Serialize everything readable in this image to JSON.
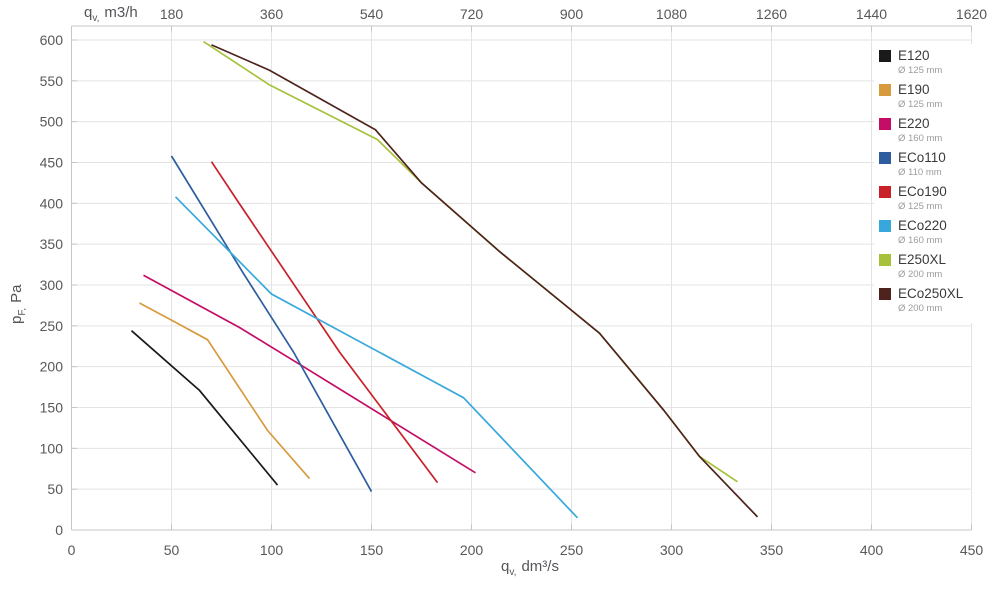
{
  "colors": {
    "background": "#ffffff",
    "grid": "#e3e3e3",
    "axis": "#c6c6c6",
    "tick_label": "#58585a",
    "axis_title": "#55555a",
    "legend_name": "#3a3a3a",
    "legend_diameter": "#9c9c9c"
  },
  "chart_data": {
    "type": "line",
    "title": "",
    "grid": true,
    "legend_position": "top-right",
    "axes": {
      "bottom": {
        "label_base": "q",
        "label_sub": "v,",
        "label_unit": "dm³/s",
        "ticks": [
          0,
          50,
          100,
          150,
          200,
          250,
          300,
          350,
          400,
          450
        ],
        "range": [
          0,
          450
        ]
      },
      "top": {
        "label_base": "q",
        "label_sub": "v,",
        "label_unit": "m3/h",
        "ticks": [
          180,
          360,
          540,
          720,
          900,
          1080,
          1260,
          1440,
          1620
        ],
        "unit_conversion_to_bottom": 3.6
      },
      "left": {
        "label_base": "p",
        "label_sub": "F,",
        "label_unit": "Pa",
        "ticks": [
          0,
          50,
          100,
          150,
          200,
          250,
          300,
          350,
          400,
          450,
          500,
          550,
          600
        ],
        "range": [
          0,
          600
        ]
      }
    },
    "series": [
      {
        "name": "E120",
        "diameter": "Ø 125 mm",
        "color": "#1a1a1a",
        "points": [
          [
            30,
            244
          ],
          [
            64,
            171
          ],
          [
            103,
            55
          ]
        ]
      },
      {
        "name": "E190",
        "diameter": "Ø 125 mm",
        "color": "#d89a3e",
        "points": [
          [
            34,
            278
          ],
          [
            53,
            253
          ],
          [
            68,
            233
          ],
          [
            98,
            122
          ],
          [
            119,
            63
          ]
        ]
      },
      {
        "name": "E220",
        "diameter": "Ø 160 mm",
        "color": "#c40d66",
        "points": [
          [
            36,
            312
          ],
          [
            84,
            248
          ],
          [
            116,
            200
          ],
          [
            202,
            70
          ]
        ]
      },
      {
        "name": "ECo110",
        "diameter": "Ø 110 mm",
        "color": "#2e5d9f",
        "points": [
          [
            50,
            458
          ],
          [
            86,
            314
          ],
          [
            111,
            218
          ],
          [
            150,
            47
          ]
        ]
      },
      {
        "name": "ECo190",
        "diameter": "Ø 125 mm",
        "color": "#c82127",
        "points": [
          [
            70,
            451
          ],
          [
            83,
            403
          ],
          [
            134,
            218
          ],
          [
            183,
            58
          ]
        ]
      },
      {
        "name": "ECo220",
        "diameter": "Ø 160 mm",
        "color": "#38a8dc",
        "points": [
          [
            52,
            408
          ],
          [
            100,
            289
          ],
          [
            196,
            162
          ],
          [
            253,
            15
          ]
        ]
      },
      {
        "name": "E250XL",
        "diameter": "Ø 200 mm",
        "color": "#a6c23c",
        "points": [
          [
            66,
            598
          ],
          [
            99,
            545
          ],
          [
            153,
            478
          ],
          [
            175,
            425
          ],
          [
            214,
            341
          ],
          [
            247,
            275
          ],
          [
            264,
            241
          ],
          [
            296,
            147
          ],
          [
            314,
            90
          ],
          [
            333,
            59
          ]
        ]
      },
      {
        "name": "ECo250XL",
        "diameter": "Ø 200 mm",
        "color": "#4e231d",
        "points": [
          [
            70,
            594
          ],
          [
            99,
            563
          ],
          [
            152,
            490
          ],
          [
            175,
            425
          ],
          [
            214,
            341
          ],
          [
            247,
            275
          ],
          [
            264,
            241
          ],
          [
            296,
            147
          ],
          [
            314,
            90
          ],
          [
            343,
            16
          ]
        ]
      }
    ]
  }
}
